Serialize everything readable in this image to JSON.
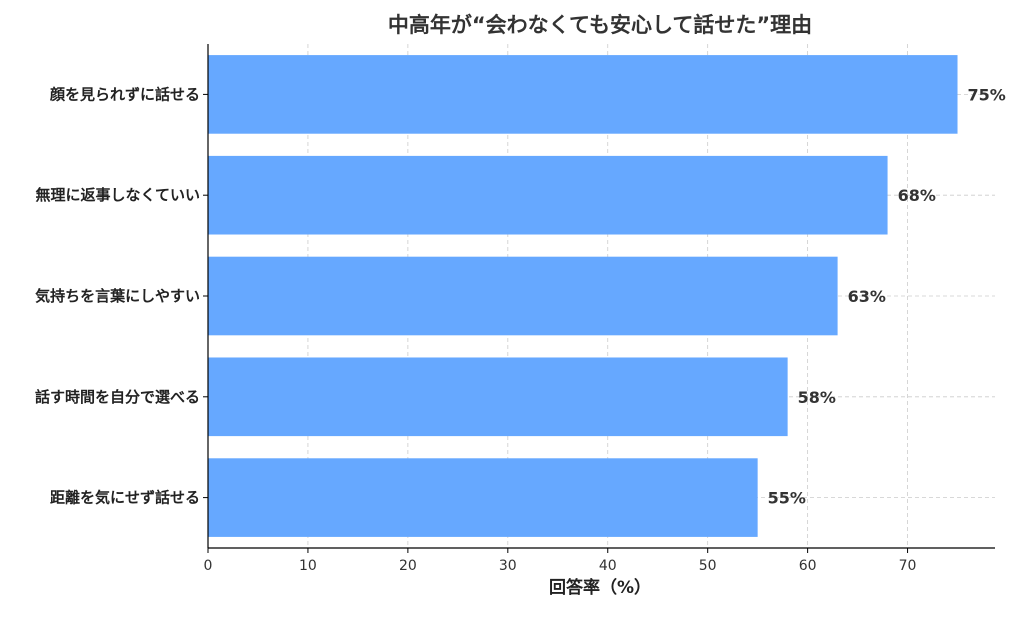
{
  "chart_data": {
    "type": "bar",
    "orientation": "horizontal",
    "title": "中高年が“会わなくても安心して話せた”理由",
    "xlabel": "回答率（%）",
    "ylabel": "",
    "categories": [
      "顔を見られずに話せる",
      "無理に返事しなくていい",
      "気持ちを言葉にしやすい",
      "話す時間を自分で選べる",
      "距離を気にせず話せる"
    ],
    "values": [
      75,
      68,
      63,
      58,
      55
    ],
    "value_labels": [
      "75%",
      "68%",
      "63%",
      "58%",
      "55%"
    ],
    "xlim": [
      0,
      78.75
    ],
    "xticks": [
      0,
      10,
      20,
      30,
      40,
      50,
      60,
      70
    ],
    "xtick_labels": [
      "0",
      "10",
      "20",
      "30",
      "40",
      "50",
      "60",
      "70"
    ],
    "grid": true,
    "legend": "none",
    "bar_color": "#66a8ff",
    "grid_color": "#cccccc",
    "text_color": "#333333"
  }
}
